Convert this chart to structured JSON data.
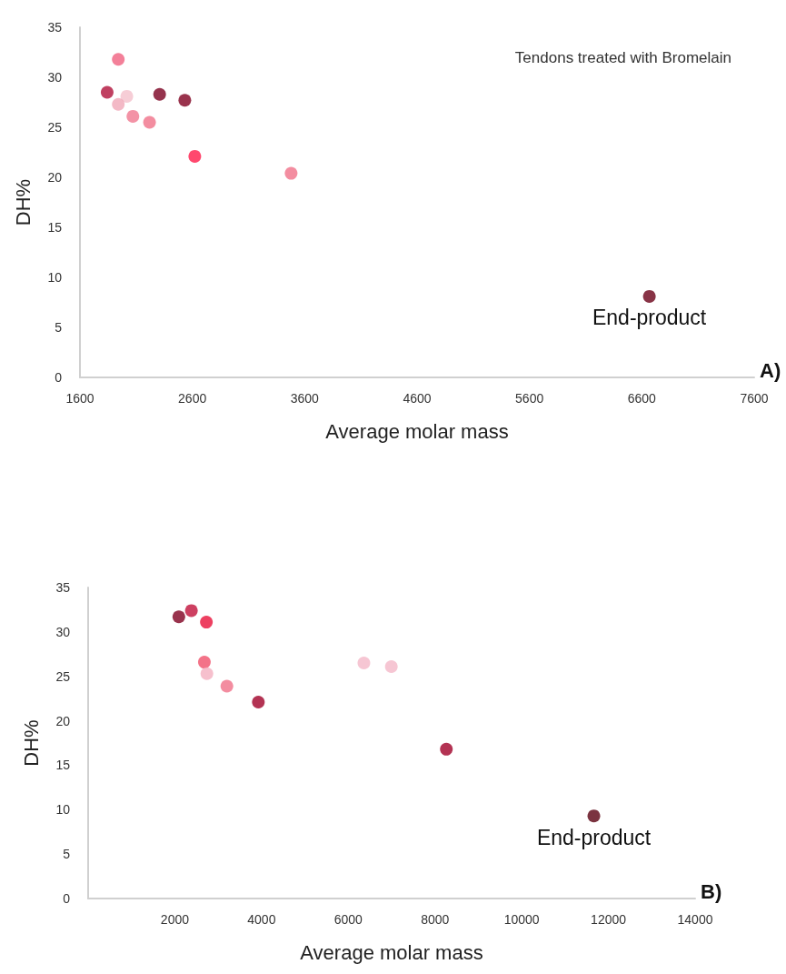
{
  "chart_data": [
    {
      "type": "scatter",
      "title": "Tendons treated with Bromelain",
      "xlabel": "Average molar mass",
      "ylabel": "DH%",
      "x": [
        1941,
        1842,
        2017,
        1941,
        2071,
        2219,
        2309,
        2533,
        2622,
        3479,
        6667
      ],
      "values": [
        31.8,
        28.5,
        28.1,
        27.3,
        26.1,
        25.5,
        28.3,
        27.7,
        22.1,
        20.4,
        8.1
      ],
      "colors": [
        "#f06080",
        "#b0103a",
        "#f4c0cc",
        "#f0a8b8",
        "#f07890",
        "#f07088",
        "#7a0020",
        "#800020",
        "#ff1a4a",
        "#f07088",
        "#6a0018"
      ],
      "marker": "circle",
      "grid": false,
      "xlim": [
        1600,
        7600
      ],
      "xticks": [
        1600,
        2600,
        3600,
        4600,
        5600,
        6600,
        7600
      ],
      "ylim": [
        0,
        35
      ],
      "yticks": [
        0,
        5,
        10,
        15,
        20,
        25,
        30,
        35
      ],
      "annotations": [
        {
          "text": "End-product",
          "x": 6667,
          "y": 8.1
        },
        "A)"
      ]
    },
    {
      "type": "scatter",
      "xlabel": "Average molar mass",
      "ylabel": "DH%",
      "x": [
        2092,
        2381,
        2727,
        2681,
        2739,
        3200,
        3926,
        6360,
        6993,
        8262,
        11664
      ],
      "values": [
        31.7,
        32.4,
        31.1,
        26.6,
        25.3,
        23.9,
        22.1,
        26.5,
        26.1,
        16.8,
        9.3
      ],
      "colors": [
        "#800020",
        "#c0103a",
        "#e8103a",
        "#f0506a",
        "#f4b0c0",
        "#f07088",
        "#a00028",
        "#f4b8c8",
        "#f4b8c8",
        "#a00028",
        "#5a0010"
      ],
      "marker": "circle",
      "grid": false,
      "xlim": [
        0,
        14000
      ],
      "xticks": [
        2000,
        4000,
        6000,
        8000,
        10000,
        12000,
        14000
      ],
      "ylim": [
        0,
        35
      ],
      "yticks": [
        0,
        5,
        10,
        15,
        20,
        25,
        30,
        35
      ],
      "annotations": [
        {
          "text": "End-product",
          "x": 11664,
          "y": 9.3
        },
        "B)"
      ]
    }
  ]
}
